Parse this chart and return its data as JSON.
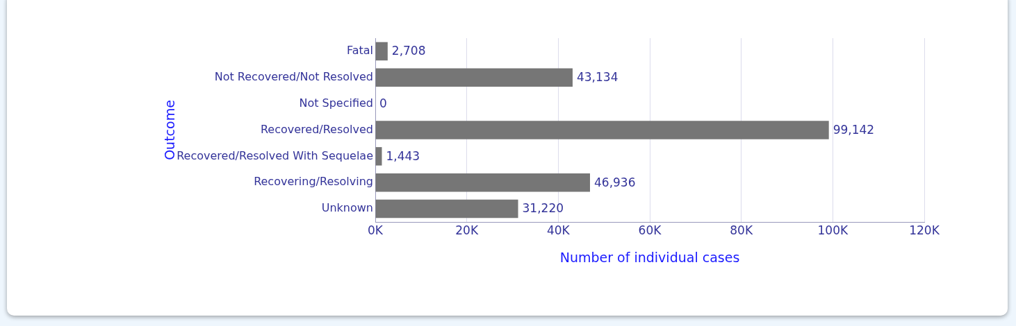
{
  "chart_data": {
    "type": "bar",
    "orientation": "horizontal",
    "xlabel": "Number of individual cases",
    "ylabel": "Outcome",
    "categories": [
      "Fatal",
      "Not Recovered/Not Resolved",
      "Not Specified",
      "Recovered/Resolved",
      "Recovered/Resolved With Sequelae",
      "Recovering/Resolving",
      "Unknown"
    ],
    "values": [
      2708,
      43134,
      0,
      99142,
      1443,
      46936,
      31220
    ],
    "value_labels": [
      "2,708",
      "43,134",
      "0",
      "99,142",
      "1,443",
      "46,936",
      "31,220"
    ],
    "color": "#767676",
    "xlim": [
      0,
      120000
    ],
    "xticks": [
      {
        "value": 0,
        "label": "0K"
      },
      {
        "value": 20000,
        "label": "20K"
      },
      {
        "value": 40000,
        "label": "40K"
      },
      {
        "value": 60000,
        "label": "60K"
      },
      {
        "value": 80000,
        "label": "80K"
      },
      {
        "value": 100000,
        "label": "100K"
      },
      {
        "value": 120000,
        "label": "120K"
      }
    ],
    "grid": "x",
    "legend": false
  }
}
